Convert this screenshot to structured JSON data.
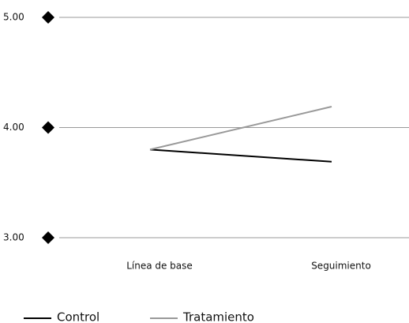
{
  "chart_data": {
    "type": "line",
    "categories": [
      "Línea de base",
      "Seguimiento"
    ],
    "series": [
      {
        "name": "Control",
        "color": "#000000",
        "values": [
          3.8,
          3.69
        ]
      },
      {
        "name": "Tratamiento",
        "color": "#999999",
        "values": [
          3.8,
          4.19
        ]
      }
    ],
    "ylim": [
      3,
      5
    ],
    "yticks": [
      {
        "value": 3,
        "label": "3.00"
      },
      {
        "value": 4,
        "label": "4.00"
      },
      {
        "value": 5,
        "label": "5.00"
      }
    ],
    "grid": true,
    "legend": "bottom"
  }
}
